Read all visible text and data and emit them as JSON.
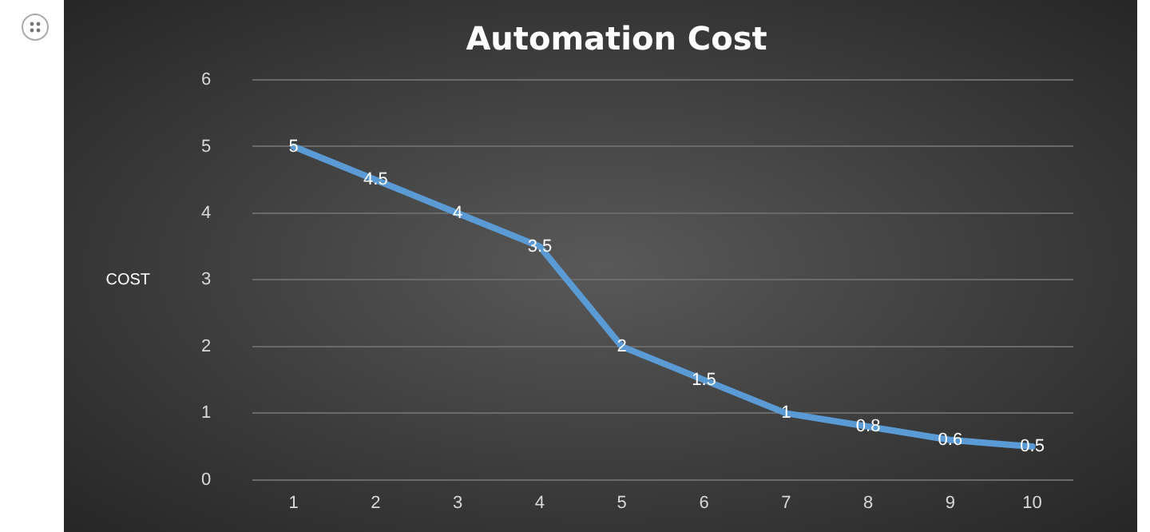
{
  "chart_data": {
    "type": "line",
    "title": "Automation Cost",
    "ylabel": "COST",
    "categories": [
      "1",
      "2",
      "3",
      "4",
      "5",
      "6",
      "7",
      "8",
      "9",
      "10"
    ],
    "series": [
      {
        "color": "#5b9bd5",
        "values": [
          5,
          4.5,
          4,
          3.5,
          2,
          1.5,
          1,
          0.8,
          0.6,
          0.5
        ]
      }
    ],
    "ylim": [
      0,
      6
    ],
    "yticks": [
      0,
      1,
      2,
      3,
      4,
      5,
      6
    ],
    "grid": "y",
    "legend": false,
    "marker": "none",
    "line_style": "solid",
    "data_labels": true
  }
}
